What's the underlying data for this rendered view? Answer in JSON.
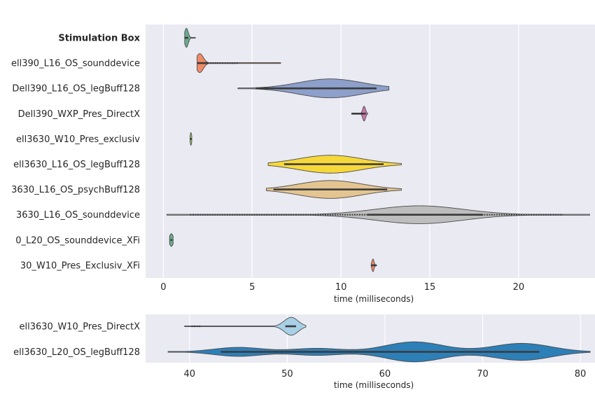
{
  "chart_data": [
    {
      "type": "violin",
      "xlabel": "time (milliseconds)",
      "xlim": [
        -1,
        24.3
      ],
      "xticks": [
        0,
        5,
        10,
        15,
        20
      ],
      "grid": true,
      "series": [
        {
          "name": "Stimulation Box",
          "bold": true,
          "color": "#6aab8f",
          "center": 1.3,
          "spread": 0.1,
          "min": 1.2,
          "max": 1.8,
          "width": 0.9,
          "whisker": [
            1.2,
            1.4
          ]
        },
        {
          "name": "ell390_L16_OS_sounddevice",
          "color": "#f08a67",
          "center": 2.05,
          "spread": 0.2,
          "min": 1.9,
          "max": 6.6,
          "width": 0.9,
          "tail": [
            2.2,
            4.2
          ],
          "whisker": [
            1.9,
            2.5
          ]
        },
        {
          "name": "Dell390_L16_OS_legBuff128",
          "color": "#8d9fcb",
          "center": 9.4,
          "spread": 1.8,
          "min": 4.2,
          "max": 12.7,
          "width": 0.9,
          "whisker": [
            5.2,
            12.0
          ]
        },
        {
          "name": "Dell390_WXP_Pres_DirectX",
          "color": "#c97ab0",
          "center": 11.3,
          "spread": 0.08,
          "min": 10.6,
          "max": 11.5,
          "width": 0.7,
          "whisker": [
            10.6,
            11.4
          ]
        },
        {
          "name": "ell3630_W10_Pres_exclusiv",
          "color": "#9fc96d",
          "center": 1.55,
          "spread": 0.04,
          "min": 1.5,
          "max": 1.6,
          "width": 0.6,
          "whisker": [
            1.5,
            1.6
          ]
        },
        {
          "name": "ell3630_L16_OS_legBuff128",
          "color": "#f6d83b",
          "center": 9.4,
          "spread": 1.8,
          "min": 5.9,
          "max": 13.4,
          "width": 0.85,
          "whisker": [
            6.8,
            12.4
          ]
        },
        {
          "name": "3630_L16_OS_psychBuff128",
          "color": "#e4c591",
          "center": 9.4,
          "spread": 1.8,
          "min": 5.8,
          "max": 13.4,
          "width": 0.85,
          "whisker": [
            6.2,
            12.6
          ]
        },
        {
          "name": "3630_L16_OS_sounddevice",
          "color": "#bdbdbd",
          "center": 14.4,
          "spread": 2.5,
          "min": 0.2,
          "max": 24.0,
          "width": 0.85,
          "tail": [
            1.5,
            22.5
          ],
          "whisker": [
            11.5,
            18.0
          ]
        },
        {
          "name": "0_L20_OS_sounddevice_XFi",
          "color": "#6aab8f",
          "center": 0.45,
          "spread": 0.1,
          "min": 0.35,
          "max": 0.55,
          "width": 0.6,
          "whisker": [
            0.4,
            0.5
          ]
        },
        {
          "name": "30_W10_Pres_Exclusiv_XFi",
          "color": "#f08a67",
          "center": 11.8,
          "spread": 0.06,
          "min": 11.7,
          "max": 12.0,
          "width": 0.6,
          "whisker": [
            11.7,
            12.0
          ]
        }
      ]
    },
    {
      "type": "violin",
      "xlabel": "time (milliseconds)",
      "xlim": [
        35.5,
        81.5
      ],
      "xticks": [
        40,
        50,
        60,
        70,
        80
      ],
      "grid": true,
      "series": [
        {
          "name": "ell3630_W10_Pres_DirectX",
          "color": "#a8d0e6",
          "center": 50.4,
          "spread": 0.7,
          "min": 39.5,
          "max": 51.9,
          "width": 0.85,
          "whisker": [
            49.8,
            50.9
          ],
          "tail": [
            40.2,
            41.2
          ]
        },
        {
          "name": "ell3630_L20_OS_legBuff128",
          "color": "#2d7fb8",
          "modes": [
            [
              45,
              2.5,
              0.45
            ],
            [
              53,
              2.5,
              0.35
            ],
            [
              63,
              3.0,
              1.0
            ],
            [
              74,
              3.0,
              0.85
            ]
          ],
          "min": 37.8,
          "max": 81.0,
          "width": 0.95,
          "whisker": [
            43.2,
            75.8
          ]
        }
      ]
    }
  ]
}
